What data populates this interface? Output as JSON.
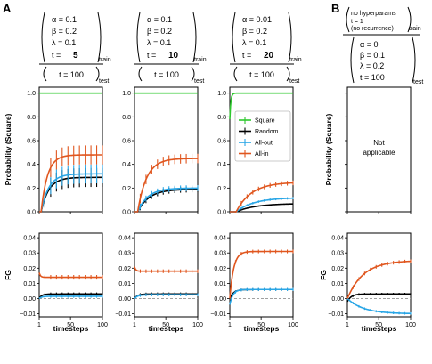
{
  "panel_labels": {
    "a": "A",
    "b": "B"
  },
  "colors": {
    "square": "#2ec82e",
    "random": "#000000",
    "allout": "#29a6e6",
    "allin": "#e0561e",
    "zero": "#a0a0a0"
  },
  "params": [
    {
      "alpha": "α = 0.1",
      "beta": "β = 0.2",
      "lambda": "λ = 0.1",
      "t_prefix": "t =",
      "t_value": "5",
      "train_sub": "train",
      "test": "t = 100",
      "test_sub": "test"
    },
    {
      "alpha": "α = 0.1",
      "beta": "β = 0.2",
      "lambda": "λ = 0.1",
      "t_prefix": "t =",
      "t_value": "10",
      "train_sub": "train",
      "test": "t = 100",
      "test_sub": "test"
    },
    {
      "alpha": "α = 0.01",
      "beta": "β = 0.2",
      "lambda": "λ = 0.1",
      "t_prefix": "t =",
      "t_value": "20",
      "train_sub": "train",
      "test": "t = 100",
      "test_sub": "test"
    }
  ],
  "params_b": {
    "train_line1": "no hyperparams",
    "train_line2": "t = 1",
    "train_line3": "(no recurrence)",
    "train_sub": "train",
    "alpha": "α = 0",
    "beta": "β = 0.1",
    "lambda": "λ = 0.2",
    "test": "t = 100",
    "test_sub": "test"
  },
  "axes": {
    "prob_ylabel": "Probability (Square)",
    "fg_ylabel": "FG",
    "xlabel": "timesteps",
    "x_ticks": [
      "1",
      "50",
      "100"
    ],
    "prob_ticks": [
      "0.0",
      "0.2",
      "0.4",
      "0.6",
      "0.8",
      "1.0"
    ],
    "fg_ticks": [
      "−0.01",
      "0.00",
      "0.01",
      "0.02",
      "0.03",
      "0.04"
    ]
  },
  "not_applicable": [
    "Not",
    "applicable"
  ],
  "chart_data": [
    {
      "type": "line",
      "panel": "A1-probability",
      "xlim": [
        1,
        100
      ],
      "ylim": [
        0,
        1.05
      ],
      "series": [
        {
          "name": "Square",
          "color_key": "square",
          "sat": 1.0,
          "tau": 1,
          "start": 1.0,
          "err": 0
        },
        {
          "name": "Random",
          "color_key": "random",
          "sat": 0.29,
          "tau": 12,
          "start": 0.0,
          "delay": 3,
          "err": 0.08
        },
        {
          "name": "All-out",
          "color_key": "allout",
          "sat": 0.32,
          "tau": 12,
          "start": 0.0,
          "delay": 3,
          "err": 0.08
        },
        {
          "name": "All-in",
          "color_key": "allin",
          "sat": 0.48,
          "tau": 10,
          "start": 0.0,
          "delay": 3,
          "err": 0.08
        }
      ]
    },
    {
      "type": "line",
      "panel": "A2-probability",
      "xlim": [
        1,
        100
      ],
      "ylim": [
        0,
        1.05
      ],
      "series": [
        {
          "name": "Square",
          "color_key": "square",
          "sat": 1.0,
          "tau": 1,
          "start": 1.0,
          "err": 0
        },
        {
          "name": "Random",
          "color_key": "random",
          "sat": 0.19,
          "tau": 18,
          "start": 0.0,
          "delay": 5,
          "err": 0.025
        },
        {
          "name": "All-out",
          "color_key": "allout",
          "sat": 0.2,
          "tau": 16,
          "start": 0.0,
          "delay": 5,
          "err": 0.025
        },
        {
          "name": "All-in",
          "color_key": "allin",
          "sat": 0.45,
          "tau": 14,
          "start": 0.0,
          "delay": 5,
          "err": 0.04
        }
      ]
    },
    {
      "type": "line",
      "panel": "A3-probability",
      "xlim": [
        1,
        100
      ],
      "ylim": [
        0,
        1.05
      ],
      "series": [
        {
          "name": "Square",
          "color_key": "square",
          "sat": 1.0,
          "tau": 1.5,
          "start": 0.78,
          "err": 0
        },
        {
          "name": "Random",
          "color_key": "random",
          "sat": 0.07,
          "tau": 30,
          "start": 0.0,
          "delay": 10,
          "err": 0.0
        },
        {
          "name": "All-out",
          "color_key": "allout",
          "sat": 0.12,
          "tau": 28,
          "start": 0.0,
          "delay": 10,
          "err": 0.01
        },
        {
          "name": "All-in",
          "color_key": "allin",
          "sat": 0.25,
          "tau": 24,
          "start": 0.0,
          "delay": 10,
          "err": 0.02
        }
      ]
    },
    {
      "type": "line",
      "panel": "A1-FG",
      "xlim": [
        1,
        100
      ],
      "ylim": [
        -0.012,
        0.043
      ],
      "series": [
        {
          "name": "Random",
          "color_key": "random",
          "sat": 0.003,
          "tau": 4,
          "start": 0.0,
          "err": 0.001
        },
        {
          "name": "All-out",
          "color_key": "allout",
          "sat": 0.0015,
          "tau": 4,
          "start": 0.0,
          "err": 0.001
        },
        {
          "name": "All-in",
          "color_key": "allin",
          "sat": 0.014,
          "tau": 2,
          "start": 0.017,
          "err": 0.0015
        }
      ]
    },
    {
      "type": "line",
      "panel": "A2-FG",
      "xlim": [
        1,
        100
      ],
      "ylim": [
        -0.012,
        0.043
      ],
      "series": [
        {
          "name": "Random",
          "color_key": "random",
          "sat": 0.003,
          "tau": 5,
          "start": 0.0,
          "err": 0.001
        },
        {
          "name": "All-out",
          "color_key": "allout",
          "sat": 0.0025,
          "tau": 5,
          "start": 0.0,
          "err": 0.001
        },
        {
          "name": "All-in",
          "color_key": "allin",
          "sat": 0.018,
          "tau": 2,
          "start": 0.021,
          "err": 0.0012
        }
      ]
    },
    {
      "type": "line",
      "panel": "A3-FG",
      "xlim": [
        1,
        100
      ],
      "ylim": [
        -0.012,
        0.043
      ],
      "series": [
        {
          "name": "Random",
          "color_key": "random",
          "sat": 0.006,
          "tau": 6,
          "start": 0.0,
          "err": 0.0008
        },
        {
          "name": "All-out",
          "color_key": "allout",
          "sat": 0.006,
          "tau": 5,
          "start": -0.004,
          "err": 0.001
        },
        {
          "name": "All-in",
          "color_key": "allin",
          "sat": 0.031,
          "tau": 6,
          "start": 0.0,
          "err": 0.0012
        }
      ]
    },
    {
      "type": "line",
      "panel": "B-FG",
      "xlim": [
        1,
        100
      ],
      "ylim": [
        -0.012,
        0.043
      ],
      "series": [
        {
          "name": "Random",
          "color_key": "random",
          "sat": 0.003,
          "tau": 6,
          "start": -0.002,
          "err": 0.0008
        },
        {
          "name": "All-out",
          "color_key": "allout",
          "sat": -0.01,
          "tau": 25,
          "start": 0.0,
          "err": 0.0008
        },
        {
          "name": "All-in",
          "color_key": "allin",
          "sat": 0.025,
          "tau": 25,
          "start": 0.0,
          "err": 0.0012
        }
      ]
    }
  ],
  "legend": [
    "Square",
    "Random",
    "All-out",
    "All-in"
  ]
}
